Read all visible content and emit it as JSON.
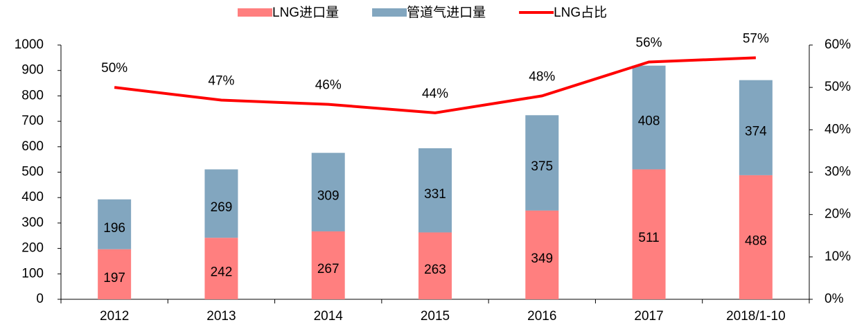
{
  "chart_data": {
    "type": "bar",
    "categories": [
      "2012",
      "2013",
      "2014",
      "2015",
      "2016",
      "2017",
      "2018/1-10"
    ],
    "stacked": true,
    "series": [
      {
        "name": "LNG进口量",
        "color": "#ff7f7f",
        "values": [
          197,
          242,
          267,
          263,
          349,
          511,
          488
        ]
      },
      {
        "name": "管道气进口量",
        "color": "#82a6bf",
        "values": [
          196,
          269,
          309,
          331,
          375,
          408,
          374
        ]
      },
      {
        "name": "LNG占比",
        "type": "line",
        "axis": "y2",
        "color": "#ff0000",
        "values": [
          50,
          47,
          46,
          44,
          48,
          56,
          57
        ],
        "value_labels": [
          "50%",
          "47%",
          "46%",
          "44%",
          "48%",
          "56%",
          "57%"
        ]
      }
    ],
    "ylim": [
      0,
      1000
    ],
    "yticks": [
      0,
      100,
      200,
      300,
      400,
      500,
      600,
      700,
      800,
      900,
      1000
    ],
    "y2lim": [
      0,
      60
    ],
    "y2ticks": [
      {
        "value": 0,
        "label": "0%"
      },
      {
        "value": 10,
        "label": "10%"
      },
      {
        "value": 20,
        "label": "20%"
      },
      {
        "value": 30,
        "label": "30%"
      },
      {
        "value": 40,
        "label": "40%"
      },
      {
        "value": 50,
        "label": "50%"
      },
      {
        "value": 60,
        "label": "60%"
      }
    ],
    "legend": "top"
  }
}
